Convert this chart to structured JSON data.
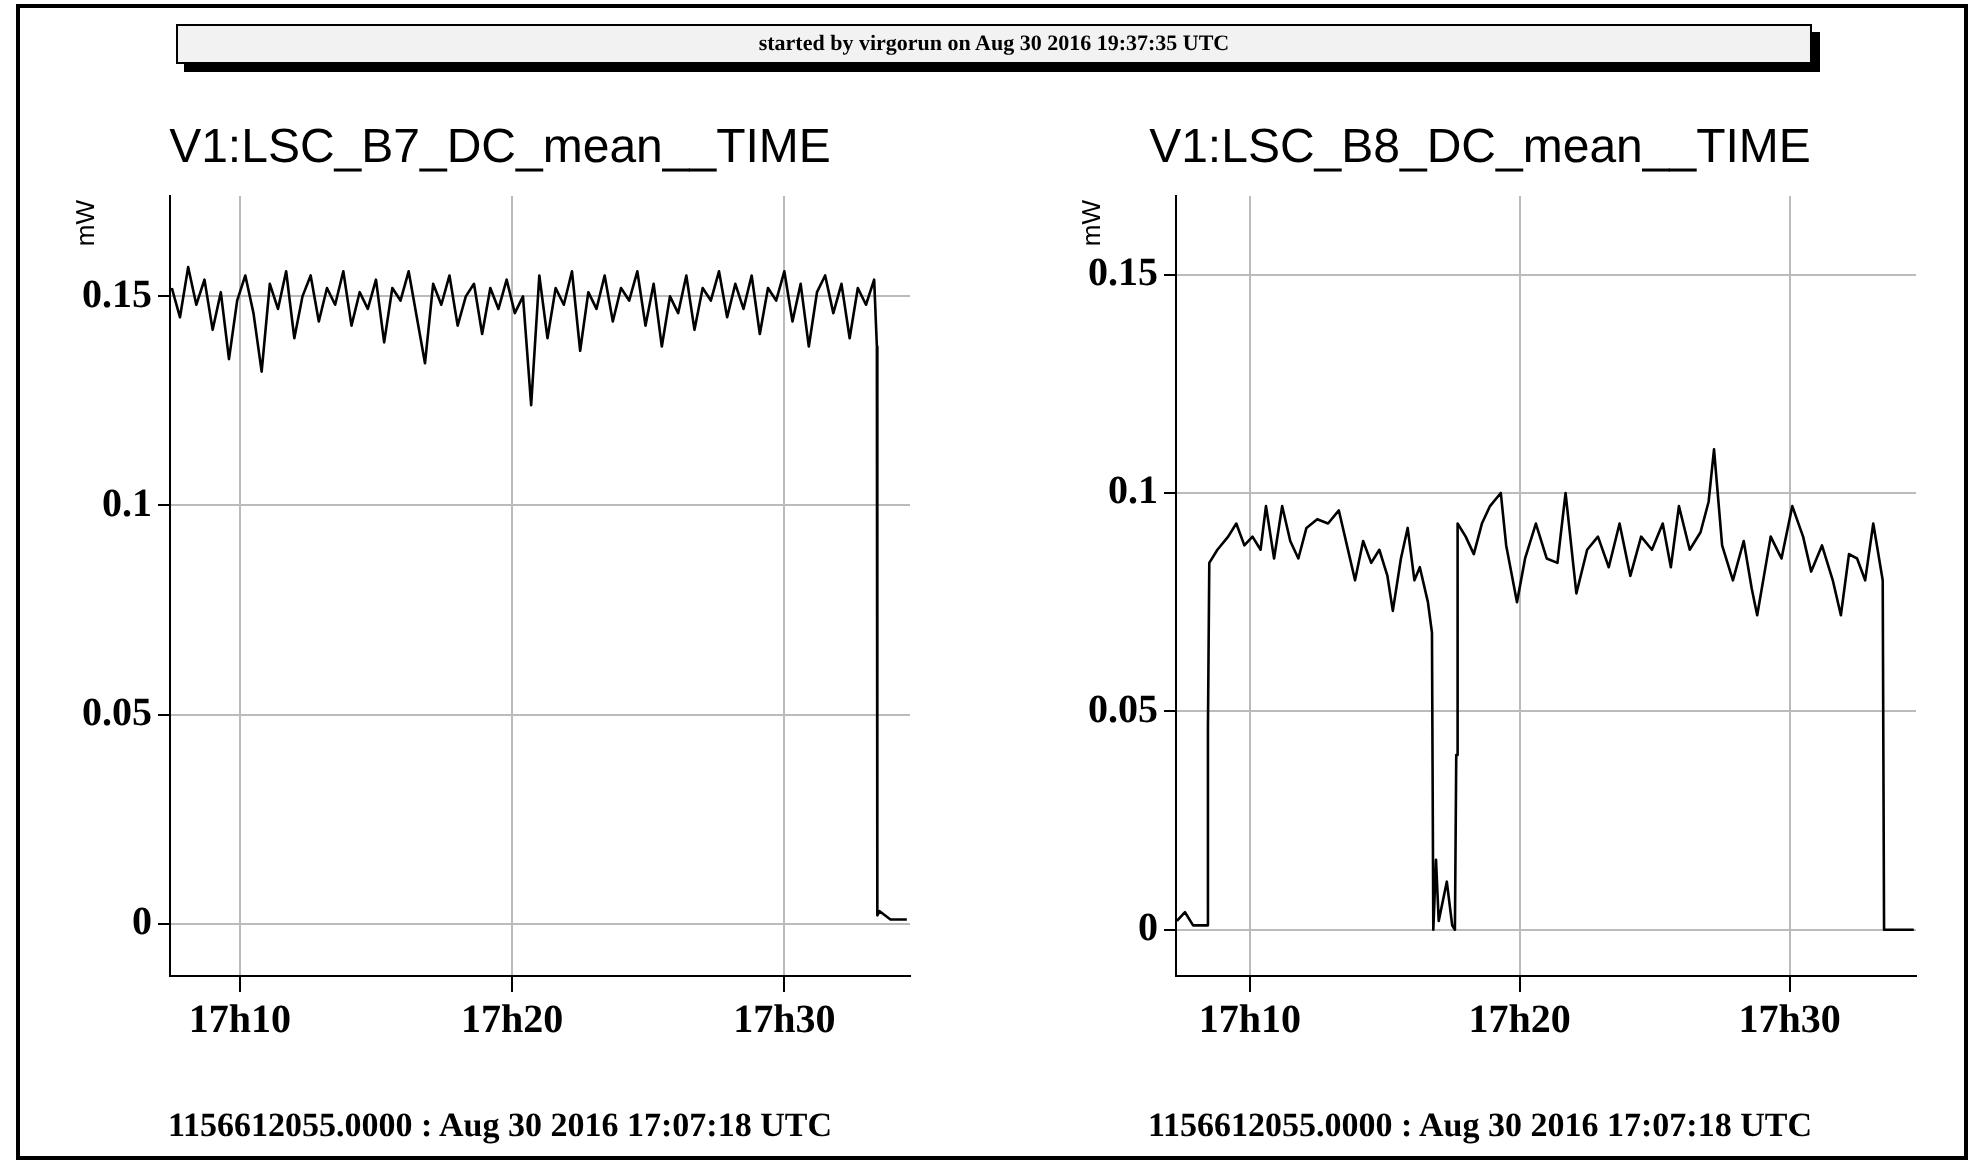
{
  "chart_data": [
    {
      "type": "line",
      "title": "V1:LSC_B7_DC_mean__TIME",
      "subtitle": "started by virgorun on Aug 30 2016 19:37:35 UTC",
      "ylabel": "mW",
      "annotations": [
        "1156612055.0000 : Aug 30 2016 17:07:18 UTC"
      ],
      "xlim": [
        "2016-08-30T17:07:26",
        "2016-08-30T17:34:37"
      ],
      "ylim": [
        -0.0125,
        0.174
      ],
      "xticks": [
        {
          "value": "2016-08-30T17:10",
          "label": "17h10"
        },
        {
          "value": "2016-08-30T17:20",
          "label": "17h20"
        },
        {
          "value": "2016-08-30T17:30",
          "label": "17h30"
        }
      ],
      "yticks": [
        0,
        0.05,
        0.1,
        0.15
      ],
      "grid": true,
      "series": [
        {
          "color": "#000000",
          "x": [
            "2016-08-30T17:07:30",
            "2016-08-30T17:07:48",
            "2016-08-30T17:08:06",
            "2016-08-30T17:08:24",
            "2016-08-30T17:08:42",
            "2016-08-30T17:09:00",
            "2016-08-30T17:09:18",
            "2016-08-30T17:09:36",
            "2016-08-30T17:09:54",
            "2016-08-30T17:10:12",
            "2016-08-30T17:10:30",
            "2016-08-30T17:10:48",
            "2016-08-30T17:11:06",
            "2016-08-30T17:11:24",
            "2016-08-30T17:11:42",
            "2016-08-30T17:12:00",
            "2016-08-30T17:12:18",
            "2016-08-30T17:12:36",
            "2016-08-30T17:12:54",
            "2016-08-30T17:13:12",
            "2016-08-30T17:13:30",
            "2016-08-30T17:13:48",
            "2016-08-30T17:14:06",
            "2016-08-30T17:14:24",
            "2016-08-30T17:14:42",
            "2016-08-30T17:15:00",
            "2016-08-30T17:15:18",
            "2016-08-30T17:15:36",
            "2016-08-30T17:15:54",
            "2016-08-30T17:16:12",
            "2016-08-30T17:16:30",
            "2016-08-30T17:16:48",
            "2016-08-30T17:17:06",
            "2016-08-30T17:17:24",
            "2016-08-30T17:17:42",
            "2016-08-30T17:18:00",
            "2016-08-30T17:18:18",
            "2016-08-30T17:18:36",
            "2016-08-30T17:18:54",
            "2016-08-30T17:19:12",
            "2016-08-30T17:19:30",
            "2016-08-30T17:19:48",
            "2016-08-30T17:20:06",
            "2016-08-30T17:20:24",
            "2016-08-30T17:20:42",
            "2016-08-30T17:21:00",
            "2016-08-30T17:21:18",
            "2016-08-30T17:21:36",
            "2016-08-30T17:21:54",
            "2016-08-30T17:22:12",
            "2016-08-30T17:22:30",
            "2016-08-30T17:22:48",
            "2016-08-30T17:23:06",
            "2016-08-30T17:23:24",
            "2016-08-30T17:23:42",
            "2016-08-30T17:24:00",
            "2016-08-30T17:24:18",
            "2016-08-30T17:24:36",
            "2016-08-30T17:24:54",
            "2016-08-30T17:25:12",
            "2016-08-30T17:25:30",
            "2016-08-30T17:25:48",
            "2016-08-30T17:26:06",
            "2016-08-30T17:26:24",
            "2016-08-30T17:26:42",
            "2016-08-30T17:27:00",
            "2016-08-30T17:27:18",
            "2016-08-30T17:27:36",
            "2016-08-30T17:27:54",
            "2016-08-30T17:28:12",
            "2016-08-30T17:28:30",
            "2016-08-30T17:28:48",
            "2016-08-30T17:29:06",
            "2016-08-30T17:29:24",
            "2016-08-30T17:29:42",
            "2016-08-30T17:30:00",
            "2016-08-30T17:30:18",
            "2016-08-30T17:30:36",
            "2016-08-30T17:30:54",
            "2016-08-30T17:31:12",
            "2016-08-30T17:31:30",
            "2016-08-30T17:31:48",
            "2016-08-30T17:32:06",
            "2016-08-30T17:32:24",
            "2016-08-30T17:32:42",
            "2016-08-30T17:33:00",
            "2016-08-30T17:33:18",
            "2016-08-30T17:33:24",
            "2016-08-30T17:33:25",
            "2016-08-30T17:33:30",
            "2016-08-30T17:33:54",
            "2016-08-30T17:34:30"
          ],
          "values": [
            0.152,
            0.145,
            0.157,
            0.148,
            0.154,
            0.142,
            0.151,
            0.135,
            0.149,
            0.155,
            0.146,
            0.132,
            0.153,
            0.147,
            0.156,
            0.14,
            0.15,
            0.155,
            0.144,
            0.152,
            0.148,
            0.156,
            0.143,
            0.151,
            0.147,
            0.154,
            0.139,
            0.152,
            0.149,
            0.156,
            0.145,
            0.134,
            0.153,
            0.148,
            0.155,
            0.143,
            0.15,
            0.153,
            0.141,
            0.152,
            0.147,
            0.154,
            0.146,
            0.15,
            0.124,
            0.155,
            0.14,
            0.152,
            0.148,
            0.156,
            0.137,
            0.151,
            0.147,
            0.155,
            0.144,
            0.152,
            0.149,
            0.156,
            0.143,
            0.153,
            0.138,
            0.15,
            0.146,
            0.155,
            0.142,
            0.152,
            0.149,
            0.156,
            0.145,
            0.153,
            0.147,
            0.155,
            0.141,
            0.152,
            0.149,
            0.156,
            0.144,
            0.153,
            0.138,
            0.151,
            0.155,
            0.146,
            0.153,
            0.14,
            0.152,
            0.148,
            0.154,
            0.138,
            0.002,
            0.003,
            0.001,
            0.001
          ]
        }
      ]
    },
    {
      "type": "line",
      "title": "V1:LSC_B8_DC_mean__TIME",
      "ylabel": "mW",
      "annotations": [
        "1156612055.0000 : Aug 30 2016 17:07:18 UTC"
      ],
      "xlim": [
        "2016-08-30T17:07:16",
        "2016-08-30T17:34:41"
      ],
      "ylim": [
        -0.0106,
        0.168
      ],
      "xticks": [
        {
          "value": "2016-08-30T17:10",
          "label": "17h10"
        },
        {
          "value": "2016-08-30T17:20",
          "label": "17h20"
        },
        {
          "value": "2016-08-30T17:30",
          "label": "17h30"
        }
      ],
      "yticks": [
        0,
        0.05,
        0.1,
        0.15
      ],
      "grid": true,
      "series": [
        {
          "color": "#000000",
          "x": [
            "2016-08-30T17:07:18",
            "2016-08-30T17:07:36",
            "2016-08-30T17:07:54",
            "2016-08-30T17:08:24",
            "2016-08-30T17:08:27",
            "2016-08-30T17:08:30",
            "2016-08-30T17:08:48",
            "2016-08-30T17:09:12",
            "2016-08-30T17:09:30",
            "2016-08-30T17:09:48",
            "2016-08-30T17:10:06",
            "2016-08-30T17:10:24",
            "2016-08-30T17:10:36",
            "2016-08-30T17:10:54",
            "2016-08-30T17:11:12",
            "2016-08-30T17:11:30",
            "2016-08-30T17:11:48",
            "2016-08-30T17:12:06",
            "2016-08-30T17:12:30",
            "2016-08-30T17:12:54",
            "2016-08-30T17:13:18",
            "2016-08-30T17:13:36",
            "2016-08-30T17:13:54",
            "2016-08-30T17:14:12",
            "2016-08-30T17:14:30",
            "2016-08-30T17:14:48",
            "2016-08-30T17:15:06",
            "2016-08-30T17:15:18",
            "2016-08-30T17:15:36",
            "2016-08-30T17:15:51",
            "2016-08-30T17:16:06",
            "2016-08-30T17:16:18",
            "2016-08-30T17:16:36",
            "2016-08-30T17:16:45",
            "2016-08-30T17:16:48",
            "2016-08-30T17:16:54",
            "2016-08-30T17:17:00",
            "2016-08-30T17:17:18",
            "2016-08-30T17:17:30",
            "2016-08-30T17:17:36",
            "2016-08-30T17:17:39",
            "2016-08-30T17:17:42",
            "2016-08-30T17:18:00",
            "2016-08-30T17:18:18",
            "2016-08-30T17:18:36",
            "2016-08-30T17:18:54",
            "2016-08-30T17:19:18",
            "2016-08-30T17:19:30",
            "2016-08-30T17:19:54",
            "2016-08-30T17:20:12",
            "2016-08-30T17:20:36",
            "2016-08-30T17:21:00",
            "2016-08-30T17:21:24",
            "2016-08-30T17:21:42",
            "2016-08-30T17:22:06",
            "2016-08-30T17:22:30",
            "2016-08-30T17:22:54",
            "2016-08-30T17:23:18",
            "2016-08-30T17:23:42",
            "2016-08-30T17:24:06",
            "2016-08-30T17:24:30",
            "2016-08-30T17:24:54",
            "2016-08-30T17:25:18",
            "2016-08-30T17:25:36",
            "2016-08-30T17:25:54",
            "2016-08-30T17:26:18",
            "2016-08-30T17:26:42",
            "2016-08-30T17:27:00",
            "2016-08-30T17:27:12",
            "2016-08-30T17:27:30",
            "2016-08-30T17:27:54",
            "2016-08-30T17:28:18",
            "2016-08-30T17:28:36",
            "2016-08-30T17:28:48",
            "2016-08-30T17:29:18",
            "2016-08-30T17:29:42",
            "2016-08-30T17:30:06",
            "2016-08-30T17:30:30",
            "2016-08-30T17:30:48",
            "2016-08-30T17:31:12",
            "2016-08-30T17:31:36",
            "2016-08-30T17:31:54",
            "2016-08-30T17:32:12",
            "2016-08-30T17:32:30",
            "2016-08-30T17:32:48",
            "2016-08-30T17:33:06",
            "2016-08-30T17:33:27",
            "2016-08-30T17:33:30",
            "2016-08-30T17:34:36"
          ],
          "values": [
            0.002,
            0.004,
            0.001,
            0.001,
            0.046,
            0.084,
            0.087,
            0.09,
            0.093,
            0.088,
            0.09,
            0.087,
            0.097,
            0.085,
            0.097,
            0.089,
            0.085,
            0.092,
            0.094,
            0.093,
            0.096,
            0.088,
            0.08,
            0.089,
            0.084,
            0.087,
            0.081,
            0.073,
            0.085,
            0.092,
            0.08,
            0.083,
            0.075,
            0.068,
            0.0,
            0.016,
            0.002,
            0.011,
            0.001,
            0.0,
            0.04,
            0.093,
            0.09,
            0.086,
            0.093,
            0.097,
            0.1,
            0.088,
            0.075,
            0.085,
            0.093,
            0.085,
            0.084,
            0.1,
            0.077,
            0.087,
            0.09,
            0.083,
            0.093,
            0.081,
            0.09,
            0.087,
            0.093,
            0.083,
            0.097,
            0.087,
            0.091,
            0.098,
            0.11,
            0.088,
            0.08,
            0.089,
            0.078,
            0.072,
            0.09,
            0.085,
            0.097,
            0.09,
            0.082,
            0.088,
            0.08,
            0.072,
            0.086,
            0.085,
            0.08,
            0.093,
            0.08,
            0.0,
            0.0
          ]
        }
      ]
    }
  ]
}
